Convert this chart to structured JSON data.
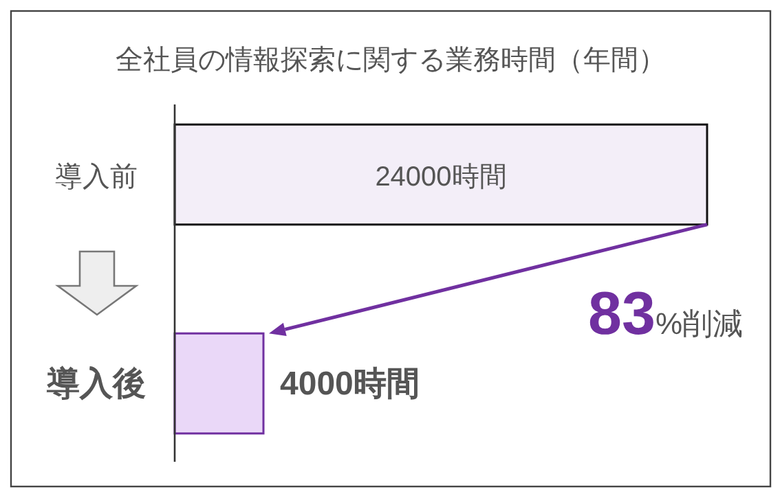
{
  "chart_data": {
    "type": "bar",
    "orientation": "horizontal",
    "title": "全社員の情報探索に関する業務時間（年間）",
    "categories": [
      "導入前",
      "導入後"
    ],
    "values": [
      24000,
      4000
    ],
    "colors": [
      "#f3eef8",
      "#ead8f8"
    ],
    "value_labels": [
      "24000時間",
      "4000時間"
    ],
    "annotations": [
      "83%削減"
    ]
  }
}
